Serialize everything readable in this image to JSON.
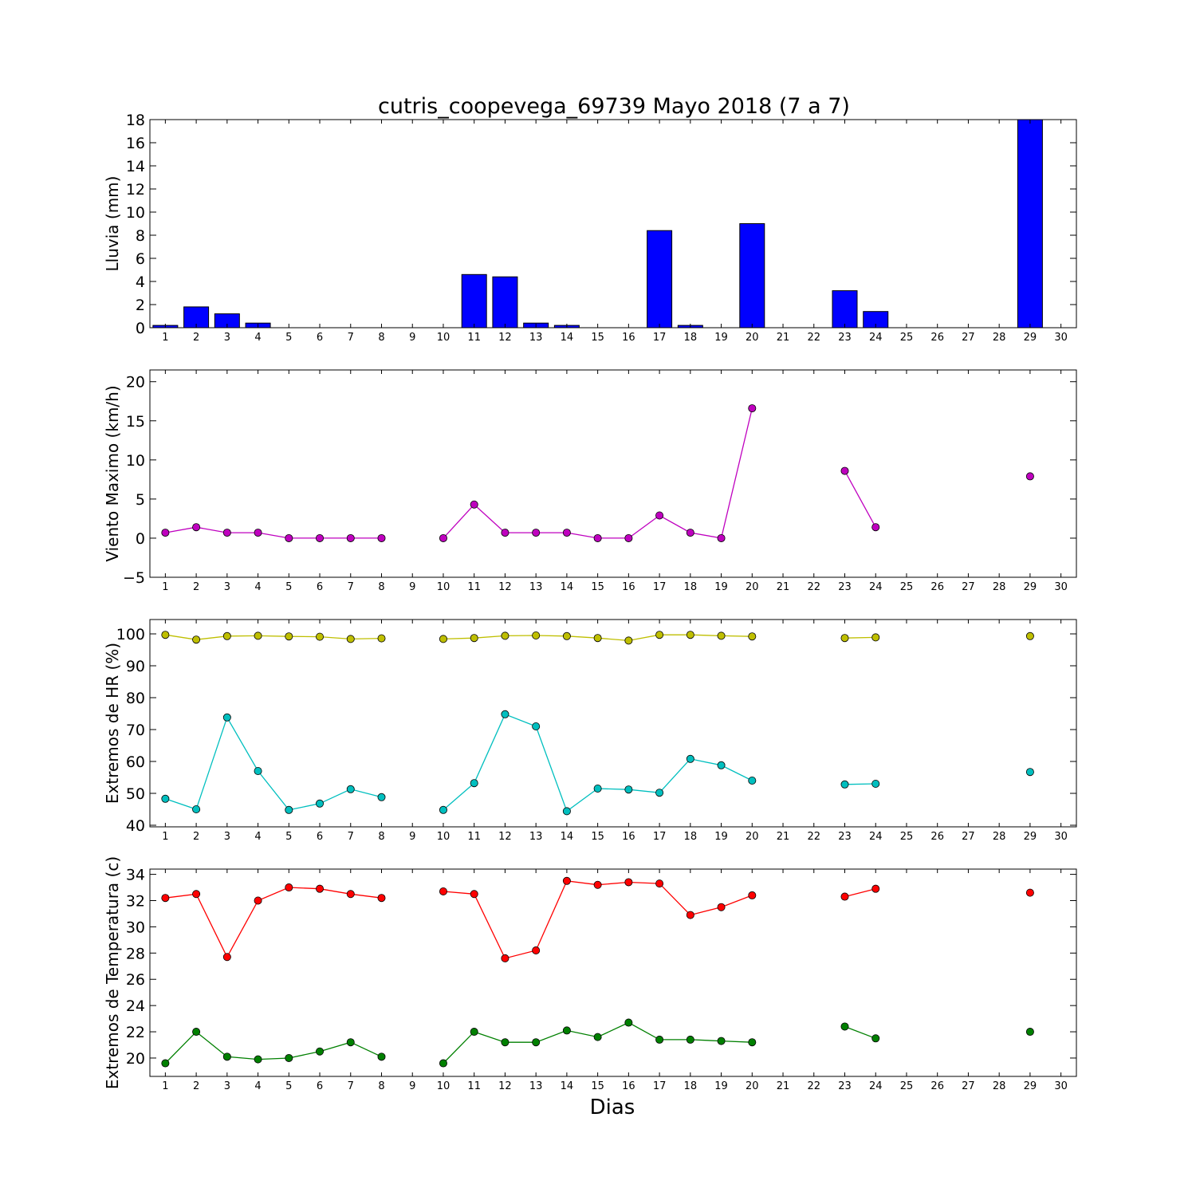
{
  "figure": {
    "title": "cutris_coopevega_69739 Mayo 2018  (7 a 7)",
    "xlabel": "Dias"
  },
  "chart_data": [
    {
      "type": "bar",
      "ylabel": "Lluvia (mm)",
      "xlim": [
        0.5,
        30.5
      ],
      "ylim": [
        0,
        18
      ],
      "x_ticks": [
        1,
        2,
        3,
        4,
        5,
        6,
        7,
        8,
        9,
        10,
        11,
        12,
        13,
        14,
        15,
        16,
        17,
        18,
        19,
        20,
        21,
        22,
        23,
        24,
        25,
        26,
        27,
        28,
        29,
        30
      ],
      "y_ticks": [
        0,
        2,
        4,
        6,
        8,
        10,
        12,
        14,
        16,
        18
      ],
      "color": "#0000ff",
      "grid": false,
      "series": [
        {
          "x": [
            1,
            2,
            3,
            4,
            5,
            6,
            7,
            8,
            9,
            10,
            11,
            12,
            13,
            14,
            15,
            16,
            17,
            18,
            19,
            20,
            23,
            24,
            29
          ],
          "values": [
            0.2,
            1.8,
            1.2,
            0.4,
            0,
            0,
            0,
            0,
            0,
            0,
            4.6,
            4.4,
            0.4,
            0.2,
            0,
            0,
            8.4,
            0.2,
            0,
            9.0,
            3.2,
            1.4,
            18.0
          ]
        }
      ]
    },
    {
      "type": "line",
      "ylabel": "Viento Maximo (km/h)",
      "xlim": [
        0.5,
        30.5
      ],
      "ylim": [
        -5,
        21.5
      ],
      "x_ticks": [
        1,
        2,
        3,
        4,
        5,
        6,
        7,
        8,
        9,
        10,
        11,
        12,
        13,
        14,
        15,
        16,
        17,
        18,
        19,
        20,
        21,
        22,
        23,
        24,
        25,
        26,
        27,
        28,
        29,
        30
      ],
      "y_ticks": [
        -5,
        0,
        5,
        10,
        15,
        20
      ],
      "grid": false,
      "series": [
        {
          "color": "#bf00bf",
          "x": [
            1,
            2,
            3,
            4,
            5,
            6,
            7,
            8,
            9,
            10,
            11,
            12,
            13,
            14,
            15,
            16,
            17,
            18,
            19,
            20,
            21,
            22,
            23,
            24,
            25,
            26,
            27,
            28,
            29,
            30
          ],
          "values": [
            0.7,
            1.4,
            0.7,
            0.7,
            0,
            0,
            0,
            0,
            null,
            0,
            4.3,
            0.7,
            0.7,
            0.7,
            0,
            0,
            2.9,
            0.7,
            0,
            16.6,
            null,
            null,
            8.6,
            1.4,
            null,
            null,
            null,
            null,
            7.9,
            null
          ]
        }
      ]
    },
    {
      "type": "line",
      "ylabel": "Extremos de HR (%)",
      "xlim": [
        0.5,
        30.5
      ],
      "ylim": [
        39.5,
        104.5
      ],
      "x_ticks": [
        1,
        2,
        3,
        4,
        5,
        6,
        7,
        8,
        9,
        10,
        11,
        12,
        13,
        14,
        15,
        16,
        17,
        18,
        19,
        20,
        21,
        22,
        23,
        24,
        25,
        26,
        27,
        28,
        29,
        30
      ],
      "y_ticks": [
        40,
        50,
        60,
        70,
        80,
        90,
        100
      ],
      "grid": false,
      "series": [
        {
          "color": "#bfbf00",
          "x": [
            1,
            2,
            3,
            4,
            5,
            6,
            7,
            8,
            9,
            10,
            11,
            12,
            13,
            14,
            15,
            16,
            17,
            18,
            19,
            20,
            21,
            22,
            23,
            24,
            25,
            26,
            27,
            28,
            29,
            30
          ],
          "values": [
            99.7,
            98.2,
            99.3,
            99.4,
            99.2,
            99.1,
            98.4,
            98.6,
            null,
            98.4,
            98.7,
            99.4,
            99.5,
            99.3,
            98.7,
            97.9,
            99.7,
            99.7,
            99.4,
            99.2,
            null,
            null,
            98.7,
            98.9,
            null,
            null,
            null,
            null,
            99.3,
            null
          ]
        },
        {
          "color": "#00bfbf",
          "x": [
            1,
            2,
            3,
            4,
            5,
            6,
            7,
            8,
            9,
            10,
            11,
            12,
            13,
            14,
            15,
            16,
            17,
            18,
            19,
            20,
            21,
            22,
            23,
            24,
            25,
            26,
            27,
            28,
            29,
            30
          ],
          "values": [
            48.3,
            45.0,
            73.8,
            57.0,
            44.8,
            46.8,
            51.3,
            48.8,
            null,
            44.8,
            53.2,
            74.8,
            71.0,
            44.4,
            51.5,
            51.2,
            50.2,
            60.8,
            58.8,
            54.0,
            null,
            null,
            52.8,
            53.0,
            null,
            null,
            null,
            null,
            56.7,
            null
          ]
        }
      ]
    },
    {
      "type": "line",
      "ylabel": "Extremos de Temperatura (c)",
      "xlim": [
        0.5,
        30.5
      ],
      "ylim": [
        18.6,
        34.4
      ],
      "x_ticks": [
        1,
        2,
        3,
        4,
        5,
        6,
        7,
        8,
        9,
        10,
        11,
        12,
        13,
        14,
        15,
        16,
        17,
        18,
        19,
        20,
        21,
        22,
        23,
        24,
        25,
        26,
        27,
        28,
        29,
        30
      ],
      "y_ticks": [
        20,
        22,
        24,
        26,
        28,
        30,
        32,
        34
      ],
      "grid": false,
      "series": [
        {
          "color": "#ff0000",
          "x": [
            1,
            2,
            3,
            4,
            5,
            6,
            7,
            8,
            9,
            10,
            11,
            12,
            13,
            14,
            15,
            16,
            17,
            18,
            19,
            20,
            21,
            22,
            23,
            24,
            25,
            26,
            27,
            28,
            29,
            30
          ],
          "values": [
            32.2,
            32.5,
            27.7,
            32.0,
            33.0,
            32.9,
            32.5,
            32.2,
            null,
            32.7,
            32.5,
            27.6,
            28.2,
            33.5,
            33.2,
            33.4,
            33.3,
            30.9,
            31.5,
            32.4,
            null,
            null,
            32.3,
            32.9,
            null,
            null,
            null,
            null,
            32.6,
            null
          ]
        },
        {
          "color": "#008000",
          "x": [
            1,
            2,
            3,
            4,
            5,
            6,
            7,
            8,
            9,
            10,
            11,
            12,
            13,
            14,
            15,
            16,
            17,
            18,
            19,
            20,
            21,
            22,
            23,
            24,
            25,
            26,
            27,
            28,
            29,
            30
          ],
          "values": [
            19.6,
            22.0,
            20.1,
            19.9,
            20.0,
            20.5,
            21.2,
            20.1,
            null,
            19.6,
            22.0,
            21.2,
            21.2,
            22.1,
            21.6,
            22.7,
            21.4,
            21.4,
            21.3,
            21.2,
            null,
            null,
            22.4,
            21.5,
            null,
            null,
            null,
            null,
            22.0,
            null
          ]
        }
      ]
    }
  ]
}
